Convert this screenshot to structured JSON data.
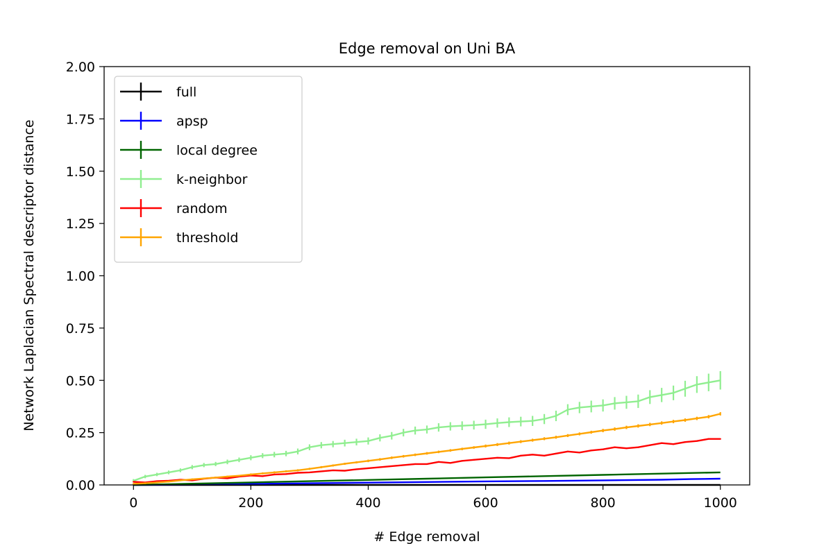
{
  "chart_data": {
    "type": "line",
    "title": "Edge removal on Uni BA",
    "xlabel": "# Edge removal",
    "ylabel": "Network Laplacian Spectral descriptor distance",
    "xlim": [
      -50,
      1050
    ],
    "ylim": [
      0,
      2.0
    ],
    "xticks": [
      0,
      200,
      400,
      600,
      800,
      1000
    ],
    "xtick_labels": [
      "0",
      "200",
      "400",
      "600",
      "800",
      "1000"
    ],
    "yticks": [
      0,
      0.25,
      0.5,
      0.75,
      1.0,
      1.25,
      1.5,
      1.75,
      2.0
    ],
    "ytick_labels": [
      "0.00",
      "0.25",
      "0.50",
      "0.75",
      "1.00",
      "1.25",
      "1.50",
      "1.75",
      "2.00"
    ],
    "grid": false,
    "legend_position": "top-left",
    "series": [
      {
        "name": "full",
        "color": "#000000",
        "x": [
          0,
          1000
        ],
        "y": [
          0.0,
          0.0
        ],
        "err": [
          0.0,
          0.0
        ]
      },
      {
        "name": "apsp",
        "color": "#0000ff",
        "x": [
          0,
          100,
          200,
          300,
          400,
          500,
          600,
          700,
          800,
          900,
          950,
          1000
        ],
        "y": [
          0.0,
          0.002,
          0.005,
          0.008,
          0.011,
          0.014,
          0.017,
          0.019,
          0.022,
          0.025,
          0.028,
          0.03
        ],
        "err": [
          0,
          0,
          0,
          0,
          0,
          0,
          0,
          0,
          0,
          0,
          0,
          0
        ]
      },
      {
        "name": "local degree",
        "color": "#006400",
        "x": [
          0,
          100,
          200,
          300,
          400,
          500,
          600,
          700,
          800,
          900,
          1000
        ],
        "y": [
          0.0,
          0.006,
          0.012,
          0.018,
          0.024,
          0.03,
          0.036,
          0.042,
          0.048,
          0.054,
          0.06
        ],
        "err": [
          0,
          0,
          0,
          0,
          0,
          0,
          0,
          0,
          0,
          0,
          0
        ]
      },
      {
        "name": "k-neighbor",
        "color": "#90ee90",
        "x": [
          0,
          20,
          40,
          60,
          80,
          100,
          120,
          140,
          160,
          180,
          200,
          220,
          240,
          260,
          280,
          300,
          320,
          340,
          360,
          380,
          400,
          420,
          440,
          460,
          480,
          500,
          520,
          540,
          560,
          580,
          600,
          620,
          640,
          660,
          680,
          700,
          720,
          740,
          760,
          780,
          800,
          820,
          840,
          860,
          880,
          900,
          920,
          940,
          960,
          980,
          1000
        ],
        "y": [
          0.02,
          0.04,
          0.05,
          0.06,
          0.07,
          0.085,
          0.095,
          0.1,
          0.11,
          0.12,
          0.13,
          0.14,
          0.145,
          0.15,
          0.16,
          0.18,
          0.19,
          0.195,
          0.2,
          0.205,
          0.21,
          0.225,
          0.235,
          0.25,
          0.26,
          0.265,
          0.275,
          0.28,
          0.283,
          0.286,
          0.29,
          0.296,
          0.3,
          0.303,
          0.306,
          0.315,
          0.33,
          0.36,
          0.37,
          0.375,
          0.38,
          0.39,
          0.395,
          0.4,
          0.42,
          0.43,
          0.44,
          0.46,
          0.48,
          0.49,
          0.5
        ],
        "err": [
          0.008,
          0.008,
          0.008,
          0.009,
          0.009,
          0.01,
          0.01,
          0.01,
          0.011,
          0.011,
          0.012,
          0.012,
          0.013,
          0.013,
          0.014,
          0.014,
          0.015,
          0.015,
          0.016,
          0.016,
          0.017,
          0.017,
          0.018,
          0.018,
          0.019,
          0.019,
          0.02,
          0.02,
          0.021,
          0.021,
          0.022,
          0.022,
          0.023,
          0.023,
          0.024,
          0.024,
          0.025,
          0.026,
          0.027,
          0.028,
          0.029,
          0.03,
          0.031,
          0.032,
          0.033,
          0.034,
          0.035,
          0.038,
          0.04,
          0.042,
          0.044
        ]
      },
      {
        "name": "random",
        "color": "#ff0000",
        "x": [
          0,
          20,
          40,
          60,
          80,
          100,
          120,
          140,
          160,
          180,
          200,
          220,
          240,
          260,
          280,
          300,
          320,
          340,
          360,
          380,
          400,
          420,
          440,
          460,
          480,
          500,
          520,
          540,
          560,
          580,
          600,
          620,
          640,
          660,
          680,
          700,
          720,
          740,
          760,
          780,
          800,
          820,
          840,
          860,
          880,
          900,
          920,
          940,
          960,
          980,
          1000
        ],
        "y": [
          0.015,
          0.012,
          0.018,
          0.02,
          0.025,
          0.022,
          0.03,
          0.035,
          0.032,
          0.04,
          0.045,
          0.042,
          0.05,
          0.052,
          0.058,
          0.06,
          0.065,
          0.07,
          0.068,
          0.075,
          0.08,
          0.085,
          0.09,
          0.095,
          0.1,
          0.1,
          0.11,
          0.105,
          0.115,
          0.12,
          0.125,
          0.13,
          0.128,
          0.14,
          0.145,
          0.14,
          0.15,
          0.16,
          0.155,
          0.165,
          0.17,
          0.18,
          0.175,
          0.18,
          0.19,
          0.2,
          0.195,
          0.205,
          0.21,
          0.22,
          0.22
        ],
        "err": [
          0.003,
          0.003,
          0.003,
          0.003,
          0.003,
          0.003,
          0.003,
          0.003,
          0.003,
          0.003,
          0.003,
          0.003,
          0.003,
          0.003,
          0.003,
          0.003,
          0.003,
          0.003,
          0.003,
          0.003,
          0.003,
          0.003,
          0.003,
          0.003,
          0.003,
          0.003,
          0.003,
          0.003,
          0.003,
          0.003,
          0.003,
          0.003,
          0.003,
          0.003,
          0.003,
          0.003,
          0.003,
          0.003,
          0.003,
          0.003,
          0.003,
          0.003,
          0.003,
          0.003,
          0.003,
          0.003,
          0.003,
          0.003,
          0.003,
          0.003,
          0.003
        ]
      },
      {
        "name": "threshold",
        "color": "#ffa500",
        "x": [
          0,
          20,
          40,
          60,
          80,
          100,
          120,
          140,
          160,
          180,
          200,
          220,
          240,
          260,
          280,
          300,
          320,
          340,
          360,
          380,
          400,
          420,
          440,
          460,
          480,
          500,
          520,
          540,
          560,
          580,
          600,
          620,
          640,
          660,
          680,
          700,
          720,
          740,
          760,
          780,
          800,
          820,
          840,
          860,
          880,
          900,
          920,
          940,
          960,
          980,
          1000
        ],
        "y": [
          0.005,
          0.008,
          0.012,
          0.016,
          0.022,
          0.027,
          0.031,
          0.035,
          0.04,
          0.044,
          0.05,
          0.055,
          0.06,
          0.065,
          0.07,
          0.077,
          0.085,
          0.093,
          0.101,
          0.108,
          0.115,
          0.122,
          0.13,
          0.137,
          0.144,
          0.151,
          0.158,
          0.165,
          0.172,
          0.179,
          0.186,
          0.193,
          0.2,
          0.207,
          0.214,
          0.221,
          0.228,
          0.236,
          0.244,
          0.252,
          0.26,
          0.267,
          0.275,
          0.282,
          0.289,
          0.296,
          0.303,
          0.31,
          0.318,
          0.326,
          0.34
        ],
        "err": [
          0.004,
          0.004,
          0.004,
          0.004,
          0.004,
          0.004,
          0.004,
          0.004,
          0.004,
          0.004,
          0.005,
          0.005,
          0.005,
          0.005,
          0.005,
          0.005,
          0.005,
          0.005,
          0.005,
          0.005,
          0.006,
          0.006,
          0.006,
          0.006,
          0.006,
          0.006,
          0.006,
          0.006,
          0.006,
          0.006,
          0.007,
          0.007,
          0.007,
          0.007,
          0.007,
          0.007,
          0.007,
          0.007,
          0.007,
          0.007,
          0.008,
          0.008,
          0.008,
          0.008,
          0.008,
          0.008,
          0.008,
          0.008,
          0.008,
          0.008,
          0.008
        ]
      }
    ]
  }
}
